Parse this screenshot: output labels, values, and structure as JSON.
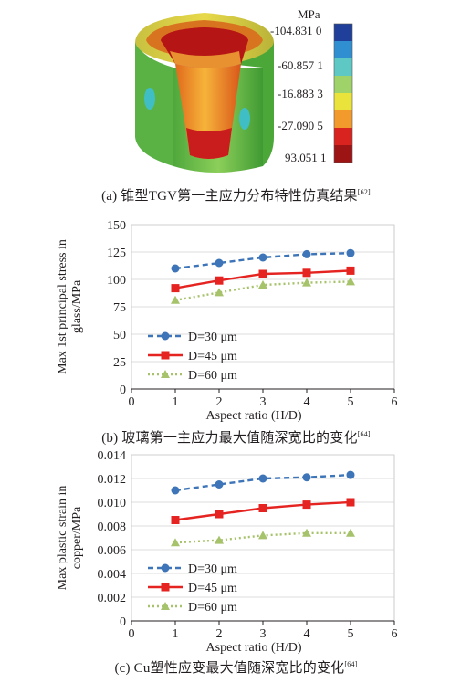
{
  "figure_a": {
    "colorbar": {
      "unit": "MPa",
      "labels": [
        "-104.831 0",
        "-60.857 1",
        "-16.883 3",
        "-27.090 5",
        "93.051 1"
      ],
      "colors": [
        "#1f3f9a",
        "#2f8fd0",
        "#5ec8c4",
        "#9fd36a",
        "#e9e33b",
        "#f29a2b",
        "#d8231f",
        "#9c1414"
      ]
    },
    "caption": {
      "text": "(a) 锥型TGV第一主应力分布特性仿真结果",
      "ref": "[62]"
    }
  },
  "figure_b": {
    "caption": {
      "text": "(b) 玻璃第一主应力最大值随深宽比的变化",
      "ref": "[64]"
    }
  },
  "figure_c": {
    "caption": {
      "text": "(c) Cu塑性应变最大值随深宽比的变化",
      "ref": "[64]"
    }
  },
  "chart_data": [
    {
      "type": "line",
      "ylabel_line1": "Max 1st principal stress in",
      "ylabel_line2": "glass/MPa",
      "xlabel": "Aspect ratio (H/D)",
      "xlim": [
        0,
        6
      ],
      "ylim": [
        0,
        150
      ],
      "xticks": [
        0,
        1,
        2,
        3,
        4,
        5,
        6
      ],
      "yticks": [
        0,
        25,
        50,
        75,
        100,
        125,
        150
      ],
      "grid": "horizontal",
      "legend_position": "lower-left",
      "x": [
        1,
        2,
        3,
        4,
        5
      ],
      "series": [
        {
          "name": "D=30 μm",
          "values": [
            110,
            115,
            120,
            123,
            124
          ],
          "color": "#3d75b8",
          "style": "dashed",
          "marker": "circle"
        },
        {
          "name": "D=45 μm",
          "values": [
            92,
            99,
            105,
            106,
            108
          ],
          "color": "#e52421",
          "style": "solid",
          "marker": "square"
        },
        {
          "name": "D=60 μm",
          "values": [
            81,
            88,
            95,
            97,
            98
          ],
          "color": "#a6c36b",
          "style": "dotted",
          "marker": "triangle"
        }
      ]
    },
    {
      "type": "line",
      "ylabel_line1": "Max plastic strain in",
      "ylabel_line2": "copper/MPa",
      "xlabel": "Aspect ratio (H/D)",
      "xlim": [
        0,
        6
      ],
      "ylim": [
        0,
        0.014
      ],
      "xticks": [
        0,
        1,
        2,
        3,
        4,
        5,
        6
      ],
      "yticks": [
        0,
        0.002,
        0.004,
        0.006,
        0.008,
        0.01,
        0.012,
        0.014
      ],
      "ytick_labels": [
        "0",
        "0.002",
        "0.004",
        "0.006",
        "0.008",
        "0.010",
        "0.012",
        "0.014"
      ],
      "grid": "horizontal",
      "legend_position": "lower-left",
      "x": [
        1,
        2,
        3,
        4,
        5
      ],
      "series": [
        {
          "name": "D=30 μm",
          "values": [
            0.011,
            0.0115,
            0.012,
            0.0121,
            0.0123
          ],
          "color": "#3d75b8",
          "style": "dashed",
          "marker": "circle"
        },
        {
          "name": "D=45 μm",
          "values": [
            0.0085,
            0.009,
            0.0095,
            0.0098,
            0.01
          ],
          "color": "#e52421",
          "style": "solid",
          "marker": "square"
        },
        {
          "name": "D=60 μm",
          "values": [
            0.0066,
            0.0068,
            0.0072,
            0.0074,
            0.0074
          ],
          "color": "#a6c36b",
          "style": "dotted",
          "marker": "triangle"
        }
      ]
    }
  ]
}
